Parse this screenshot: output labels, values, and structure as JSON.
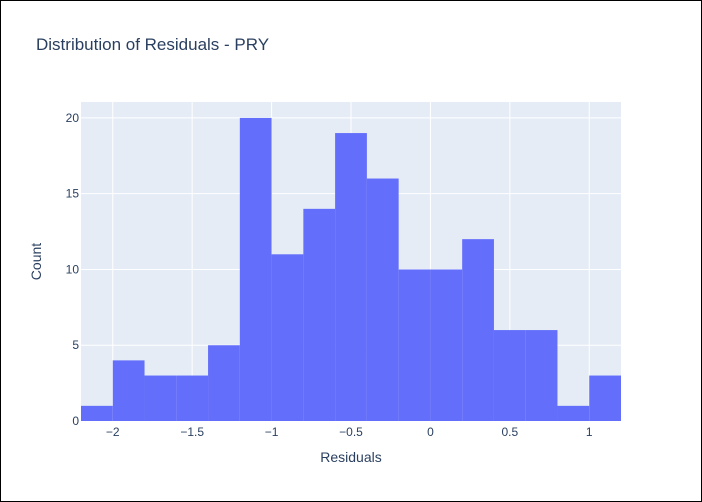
{
  "chart_data": {
    "type": "bar",
    "title": "Distribution of Residuals - PRY",
    "xlabel": "Residuals",
    "ylabel": "Count",
    "bin_width": 0.2,
    "bins": [
      {
        "start": -2.2,
        "end": -2.0,
        "count": 1
      },
      {
        "start": -2.0,
        "end": -1.8,
        "count": 4
      },
      {
        "start": -1.8,
        "end": -1.6,
        "count": 3
      },
      {
        "start": -1.6,
        "end": -1.4,
        "count": 3
      },
      {
        "start": -1.4,
        "end": -1.2,
        "count": 5
      },
      {
        "start": -1.2,
        "end": -1.0,
        "count": 20
      },
      {
        "start": -1.0,
        "end": -0.8,
        "count": 11
      },
      {
        "start": -0.8,
        "end": -0.6,
        "count": 14
      },
      {
        "start": -0.6,
        "end": -0.4,
        "count": 19
      },
      {
        "start": -0.4,
        "end": -0.2,
        "count": 16
      },
      {
        "start": -0.2,
        "end": 0.0,
        "count": 10
      },
      {
        "start": 0.0,
        "end": 0.2,
        "count": 10
      },
      {
        "start": 0.2,
        "end": 0.4,
        "count": 12
      },
      {
        "start": 0.4,
        "end": 0.6,
        "count": 6
      },
      {
        "start": 0.6,
        "end": 0.8,
        "count": 6
      },
      {
        "start": 0.8,
        "end": 1.0,
        "count": 1
      },
      {
        "start": 1.0,
        "end": 1.2,
        "count": 3
      }
    ],
    "xlim": [
      -2.2,
      1.2
    ],
    "ylim": [
      0,
      21.05
    ],
    "x_ticks": [
      {
        "value": -2,
        "label": "−2"
      },
      {
        "value": -1.5,
        "label": "−1.5"
      },
      {
        "value": -1,
        "label": "−1"
      },
      {
        "value": -0.5,
        "label": "−0.5"
      },
      {
        "value": 0,
        "label": "0"
      },
      {
        "value": 0.5,
        "label": "0.5"
      },
      {
        "value": 1,
        "label": "1"
      }
    ],
    "y_ticks": [
      {
        "value": 0,
        "label": "0"
      },
      {
        "value": 5,
        "label": "5"
      },
      {
        "value": 10,
        "label": "10"
      },
      {
        "value": 15,
        "label": "15"
      },
      {
        "value": 20,
        "label": "20"
      }
    ],
    "grid": true,
    "legend": "none",
    "colors": {
      "bar": "#636efa",
      "plot_background": "#e5ecf6",
      "gridline": "#ffffff",
      "text": "#2a3f5f"
    }
  }
}
